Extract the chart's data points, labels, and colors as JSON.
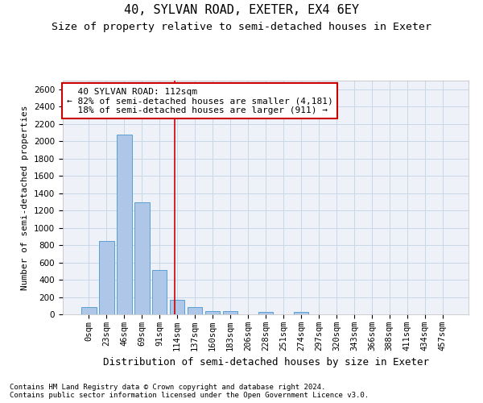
{
  "title": "40, SYLVAN ROAD, EXETER, EX4 6EY",
  "subtitle": "Size of property relative to semi-detached houses in Exeter",
  "xlabel": "Distribution of semi-detached houses by size in Exeter",
  "ylabel": "Number of semi-detached properties",
  "footnote1": "Contains HM Land Registry data © Crown copyright and database right 2024.",
  "footnote2": "Contains public sector information licensed under the Open Government Licence v3.0.",
  "bar_labels": [
    "0sqm",
    "23sqm",
    "46sqm",
    "69sqm",
    "91sqm",
    "114sqm",
    "137sqm",
    "160sqm",
    "183sqm",
    "206sqm",
    "228sqm",
    "251sqm",
    "274sqm",
    "297sqm",
    "320sqm",
    "343sqm",
    "366sqm",
    "388sqm",
    "411sqm",
    "434sqm",
    "457sqm"
  ],
  "bar_values": [
    80,
    850,
    2080,
    1290,
    510,
    165,
    80,
    40,
    35,
    0,
    30,
    0,
    25,
    0,
    0,
    0,
    0,
    0,
    0,
    0,
    0
  ],
  "bar_color": "#aec6e8",
  "bar_edge_color": "#5a9fd4",
  "grid_color": "#c8d8e8",
  "background_color": "#eef2f8",
  "property_label": "40 SYLVAN ROAD: 112sqm",
  "pct_smaller": 82,
  "count_smaller": 4181,
  "pct_larger": 18,
  "count_larger": 911,
  "vline_x_index": 4.87,
  "annotation_box_color": "#ffffff",
  "annotation_box_edge": "#cc0000",
  "vline_color": "#cc0000",
  "ylim": [
    0,
    2700
  ],
  "yticks": [
    0,
    200,
    400,
    600,
    800,
    1000,
    1200,
    1400,
    1600,
    1800,
    2000,
    2200,
    2400,
    2600
  ],
  "title_fontsize": 11,
  "subtitle_fontsize": 9.5,
  "xlabel_fontsize": 9,
  "ylabel_fontsize": 8,
  "tick_fontsize": 7.5,
  "annot_fontsize": 8,
  "footnote_fontsize": 6.5
}
